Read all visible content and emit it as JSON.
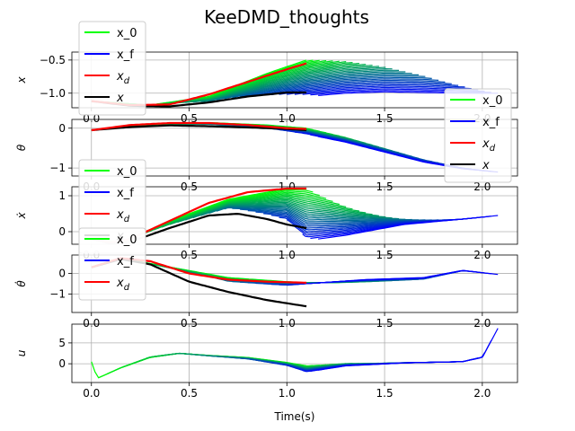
{
  "chart_data": {
    "type": "line",
    "title": "KeeDMD_thoughts",
    "xlabel": "Time(s)",
    "xlim": [
      -0.1,
      2.18
    ],
    "xticks": [
      0.0,
      0.5,
      1.0,
      1.5,
      2.0
    ],
    "xtick_labels": [
      "0.0",
      "0.5",
      "1.0",
      "1.5",
      "2.0"
    ],
    "grid": true,
    "colors": {
      "x_0": "#00ff00",
      "x_f": "#0000ff",
      "x_d": "#ff0000",
      "x": "#000000"
    },
    "legend_labels": {
      "x_0": "x_0",
      "x_f": "x_f",
      "x_d": "x_d",
      "x": "x"
    },
    "legend_entries_math": {
      "x_d_base": "x",
      "x_d_sub": "d",
      "x_italic": "x"
    },
    "subplots": [
      {
        "ylabel": "x",
        "ylim": [
          -1.22,
          -0.38
        ],
        "yticks": [
          -1.0,
          -0.5
        ],
        "ytick_labels": [
          "−1.0",
          "−0.5"
        ],
        "legend": "upper-left",
        "legend_items": [
          "x_0",
          "x_f",
          "x_d",
          "x"
        ],
        "series": {
          "x_d": {
            "x": [
              0.0,
              0.2,
              0.4,
              0.6,
              0.8,
              1.0,
              1.1
            ],
            "y": [
              -1.12,
              -1.18,
              -1.17,
              -1.02,
              -0.83,
              -0.64,
              -0.55
            ]
          },
          "x": {
            "x": [
              0.0,
              0.2,
              0.4,
              0.6,
              0.8,
              1.0,
              1.1
            ],
            "y": [
              -1.12,
              -1.19,
              -1.2,
              -1.14,
              -1.05,
              -0.99,
              -0.99
            ]
          },
          "fan_start": {
            "x": [
              0.0,
              0.3,
              0.6,
              0.9,
              1.1,
              1.3,
              1.5,
              1.7,
              1.9,
              2.05
            ],
            "y": [
              -1.12,
              -1.18,
              -1.05,
              -0.7,
              -0.5,
              -0.4,
              -0.35,
              -0.35,
              -0.45,
              -0.62
            ]
          },
          "fan_end": {
            "x": [
              0.0,
              0.3,
              0.6,
              0.9,
              1.1,
              1.3,
              1.5,
              1.7,
              1.9,
              2.08
            ],
            "y": [
              -1.12,
              -1.2,
              -1.19,
              -1.12,
              -1.05,
              -1.0,
              -0.98,
              -0.99,
              -1.0,
              -1.0
            ]
          }
        }
      },
      {
        "ylabel": "θ",
        "ylim": [
          -1.2,
          0.22
        ],
        "yticks": [
          -1,
          0
        ],
        "ytick_labels": [
          "−1",
          "0"
        ],
        "legend": "right",
        "legend_items": [
          "x_0",
          "x_f",
          "x_d",
          "x"
        ],
        "series": {
          "x_d": {
            "x": [
              0.0,
              0.2,
              0.4,
              0.6,
              0.8,
              1.0,
              1.1
            ],
            "y": [
              -0.05,
              0.08,
              0.13,
              0.13,
              0.08,
              0.0,
              -0.02
            ]
          },
          "x": {
            "x": [
              0.0,
              0.2,
              0.4,
              0.6,
              0.8,
              1.0,
              1.1
            ],
            "y": [
              -0.05,
              0.03,
              0.07,
              0.05,
              0.02,
              -0.02,
              -0.05
            ]
          },
          "fan_start": {
            "x": [
              0.0,
              0.3,
              0.6,
              0.9,
              1.1,
              1.3,
              1.5,
              1.7,
              1.9,
              2.05
            ],
            "y": [
              -0.05,
              0.1,
              0.14,
              0.08,
              0.0,
              -0.2,
              -0.45,
              -0.7,
              -0.9,
              -1.02
            ]
          },
          "fan_end": {
            "x": [
              0.0,
              0.3,
              0.6,
              0.9,
              1.1,
              1.3,
              1.5,
              1.7,
              1.9,
              2.08
            ],
            "y": [
              -0.05,
              0.05,
              0.06,
              -0.02,
              -0.15,
              -0.35,
              -0.6,
              -0.85,
              -1.02,
              -1.1
            ]
          }
        }
      },
      {
        "ylabel": "ẋ",
        "ylim": [
          -0.35,
          1.25
        ],
        "yticks": [
          0,
          1
        ],
        "ytick_labels": [
          "0",
          "1"
        ],
        "legend": "left",
        "legend_items": [
          "x_0",
          "x_f",
          "x_d",
          "x"
        ],
        "series": {
          "x_d": {
            "x": [
              0.0,
              0.1,
              0.2,
              0.4,
              0.6,
              0.8,
              1.0,
              1.1
            ],
            "y": [
              -0.2,
              -0.3,
              -0.2,
              0.3,
              0.8,
              1.1,
              1.2,
              1.2
            ]
          },
          "x": {
            "x": [
              0.0,
              0.1,
              0.2,
              0.4,
              0.6,
              0.75,
              0.9,
              1.0,
              1.1
            ],
            "y": [
              -0.2,
              -0.33,
              -0.28,
              0.1,
              0.45,
              0.5,
              0.35,
              0.2,
              0.1
            ]
          },
          "fan_start": {
            "x": [
              0.0,
              0.15,
              0.4,
              0.7,
              1.0,
              1.1,
              1.3,
              1.6,
              1.9,
              2.05
            ],
            "y": [
              -0.2,
              -0.3,
              0.3,
              0.9,
              1.2,
              1.2,
              0.9,
              0.5,
              0.35,
              0.4
            ]
          },
          "fan_end": {
            "x": [
              0.0,
              0.15,
              0.4,
              0.7,
              1.0,
              1.1,
              1.3,
              1.6,
              1.9,
              2.08
            ],
            "y": [
              -0.2,
              -0.32,
              0.0,
              0.5,
              0.2,
              -0.25,
              -0.1,
              0.2,
              0.35,
              0.45
            ]
          }
        }
      },
      {
        "ylabel": "θ̇",
        "ylim": [
          -1.9,
          0.9
        ],
        "yticks": [
          -1,
          0
        ],
        "ytick_labels": [
          "−1",
          "0"
        ],
        "legend": "left",
        "legend_items": [
          "x_0",
          "x_f",
          "x_d"
        ],
        "series": {
          "x_d": {
            "x": [
              0.0,
              0.15,
              0.3,
              0.5,
              0.7,
              0.9,
              1.1
            ],
            "y": [
              0.3,
              0.75,
              0.6,
              0.0,
              -0.3,
              -0.4,
              -0.45
            ]
          },
          "x": {
            "x": [
              0.0,
              0.15,
              0.3,
              0.5,
              0.7,
              0.9,
              1.1
            ],
            "y": [
              0.3,
              0.7,
              0.45,
              -0.4,
              -0.9,
              -1.3,
              -1.6
            ]
          },
          "fan_start": {
            "x": [
              0.0,
              0.15,
              0.35,
              0.7,
              1.0,
              1.1,
              1.4,
              1.7,
              1.9,
              2.05
            ],
            "y": [
              0.3,
              0.75,
              0.4,
              -0.2,
              -0.4,
              -0.45,
              -0.45,
              -0.4,
              0.05,
              0.0
            ]
          },
          "fan_end": {
            "x": [
              0.0,
              0.15,
              0.35,
              0.7,
              1.0,
              1.1,
              1.4,
              1.7,
              1.9,
              2.08
            ],
            "y": [
              0.3,
              0.7,
              0.3,
              -0.5,
              -0.6,
              -0.5,
              -0.3,
              -0.2,
              0.15,
              -0.05
            ]
          }
        }
      },
      {
        "ylabel": "u",
        "ylim": [
          -4.5,
          9.5
        ],
        "yticks": [
          0,
          5
        ],
        "ytick_labels": [
          "0",
          "5"
        ],
        "legend": "none",
        "legend_items": [],
        "series": {
          "fan_start": {
            "x": [
              0.0,
              0.03,
              0.15,
              0.3,
              0.45,
              0.6,
              0.8,
              1.0,
              1.1,
              1.3,
              1.6,
              1.9,
              2.0,
              2.05
            ],
            "y": [
              0.5,
              -3.5,
              -1.0,
              1.5,
              2.5,
              2.0,
              1.5,
              0.3,
              -0.5,
              0.2,
              0.3,
              0.5,
              3.0,
              8.0
            ]
          },
          "fan_end": {
            "x": [
              0.0,
              0.03,
              0.15,
              0.3,
              0.45,
              0.6,
              0.8,
              1.0,
              1.1,
              1.3,
              1.6,
              1.9,
              2.0,
              2.08
            ],
            "y": [
              0.5,
              -3.2,
              -0.5,
              2.0,
              2.5,
              1.8,
              1.0,
              -0.5,
              -2.0,
              -0.5,
              0.2,
              0.5,
              1.5,
              8.5
            ]
          }
        }
      }
    ]
  }
}
